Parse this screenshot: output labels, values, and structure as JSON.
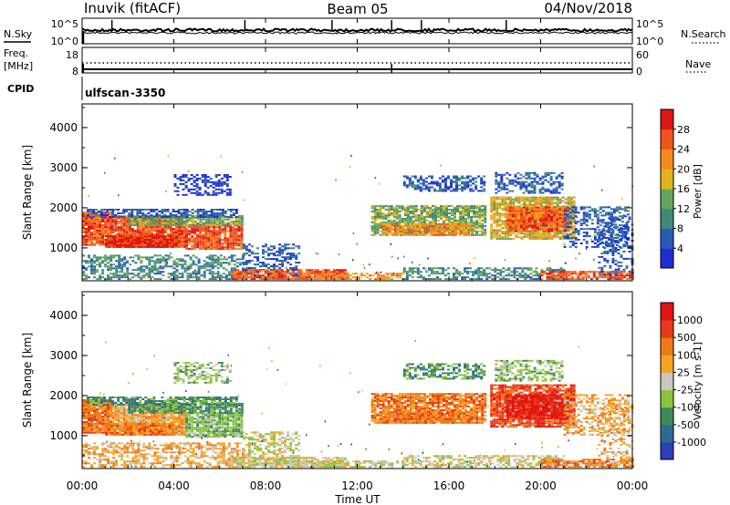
{
  "header": {
    "station": "Inuvik (fitACF)",
    "beam": "Beam 05",
    "date": "04/Nov/2018"
  },
  "nsky_panel": {
    "left_label": "N.Sky",
    "right_label": "N.Search",
    "left_ticks": [
      "10^5",
      "10^0"
    ],
    "right_ticks": [
      "10^5",
      "10^0"
    ]
  },
  "freq_panel": {
    "left_label": "Freq.",
    "left_unit": "[MHz]",
    "left_ticks": [
      "18",
      "8"
    ],
    "right_label": "Nave",
    "right_ticks": [
      "60",
      "0"
    ]
  },
  "cpid": {
    "label": "CPID",
    "program": "ulfscan",
    "value": "-3350"
  },
  "chart_data": [
    {
      "type": "heatmap",
      "name": "power",
      "ylabel": "Slant Range [km]",
      "yticks": [
        "1000",
        "2000",
        "3000",
        "4000"
      ],
      "ylim": [
        180,
        4590
      ],
      "xlim": [
        0,
        24
      ],
      "colorbar": {
        "label": "Power [dB]",
        "ticks": [
          "4",
          "8",
          "12",
          "16",
          "20",
          "24",
          "28"
        ],
        "colors": [
          "#1f2dd6",
          "#2a5bb8",
          "#3f8a7a",
          "#62a55a",
          "#e0b51c",
          "#f58a1c",
          "#f0541b",
          "#e01515"
        ]
      }
    },
    {
      "type": "heatmap",
      "name": "velocity",
      "ylabel": "Slant Range [km]",
      "yticks": [
        "1000",
        "2000",
        "3000",
        "4000"
      ],
      "ylim": [
        180,
        4590
      ],
      "xlim": [
        0,
        24
      ],
      "colorbar": {
        "label": "Velocity [m s-1]",
        "ticks": [
          "1000",
          "500",
          "100",
          "25",
          "-25",
          "-100",
          "-500",
          "-1000"
        ],
        "colors": [
          "#2a3fb8",
          "#2e6c8f",
          "#3f8a5a",
          "#8ac43a",
          "#c8c8c0",
          "#f5a520",
          "#f07a1a",
          "#e83a18",
          "#e01515"
        ]
      }
    }
  ],
  "xaxis": {
    "label": "Time UT",
    "ticks": [
      "00:00",
      "04:00",
      "08:00",
      "12:00",
      "16:00",
      "20:00",
      "00:00"
    ]
  }
}
